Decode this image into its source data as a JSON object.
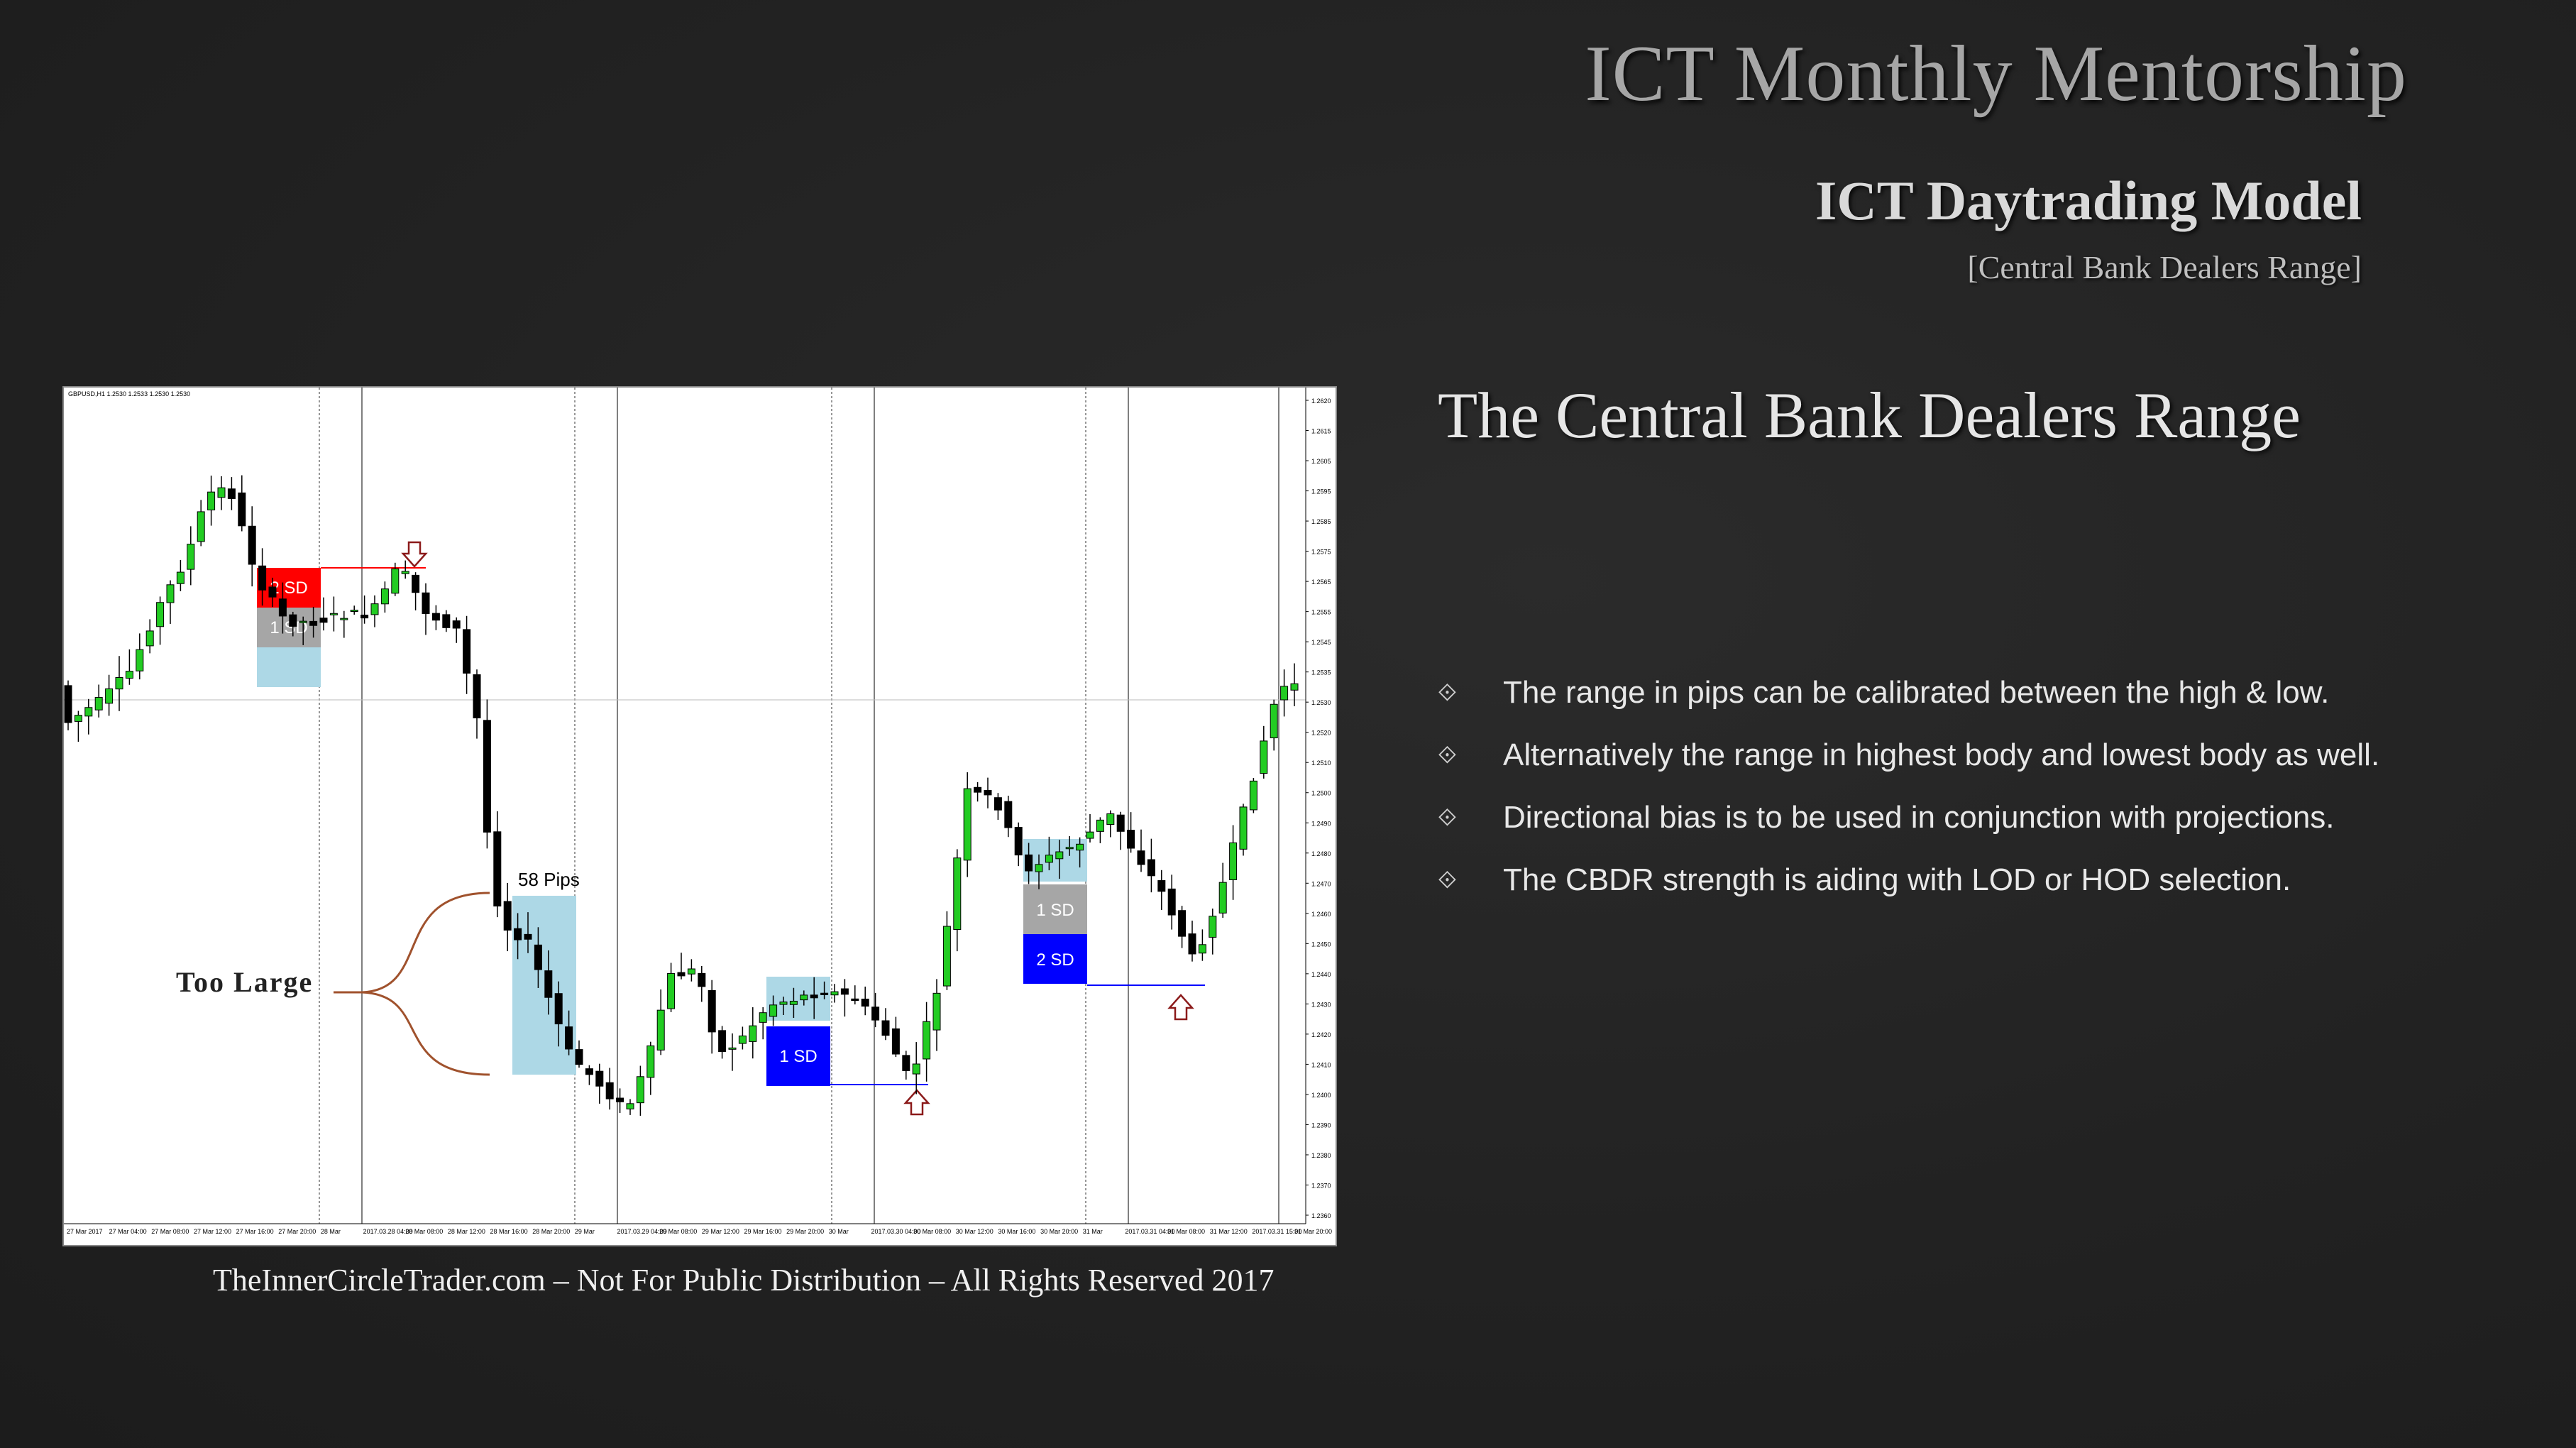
{
  "header": {
    "title": "ICT Monthly Mentorship",
    "subtitle": "ICT Daytrading Model",
    "topic": "[Central Bank Dealers Range]"
  },
  "section": {
    "heading": "The Central Bank Dealers Range",
    "bullets": [
      "The range in pips can be calibrated between the high & low.",
      "Alternatively the range in highest body and lowest body as well.",
      "Directional bias is to be used in conjunction with projections.",
      "The CBDR strength is aiding with LOD or HOD selection."
    ]
  },
  "chart": {
    "symbol_label": "GBPUSD,H1  1.2530 1.2533 1.2530 1.2530",
    "annotations": {
      "sd_labels": [
        "2 SD",
        "1 SD",
        "1 SD",
        "1 SD",
        "2 SD"
      ],
      "pips_label": "58 Pips",
      "too_large_label": "Too Large"
    },
    "price_ticks": [
      "1.2620",
      "1.2615",
      "1.2605",
      "1.2595",
      "1.2585",
      "1.2575",
      "1.2565",
      "1.2555",
      "1.2545",
      "1.2535",
      "1.2530",
      "1.2520",
      "1.2510",
      "1.2500",
      "1.2490",
      "1.2480",
      "1.2470",
      "1.2460",
      "1.2450",
      "1.2440",
      "1.2430",
      "1.2420",
      "1.2410",
      "1.2400",
      "1.2390",
      "1.2380",
      "1.2370",
      "1.2360"
    ],
    "time_ticks": [
      "27 Mar 2017",
      "27 Mar 04:00",
      "27 Mar 08:00",
      "27 Mar 12:00",
      "27 Mar 16:00",
      "27 Mar 20:00",
      "28 Mar",
      "2017.03.28 04:00",
      "28 Mar 08:00",
      "28 Mar 12:00",
      "28 Mar 16:00",
      "28 Mar 20:00",
      "29 Mar",
      "2017.03.29 04:00",
      "29 Mar 08:00",
      "29 Mar 12:00",
      "29 Mar 16:00",
      "29 Mar 20:00",
      "30 Mar",
      "2017.03.30 04:00",
      "30 Mar 08:00",
      "30 Mar 12:00",
      "30 Mar 16:00",
      "30 Mar 20:00",
      "31 Mar",
      "2017.03.31 04:00",
      "31 Mar 08:00",
      "31 Mar 12:00",
      "2017.03.31 15:00",
      "31 Mar 20:00"
    ],
    "colors": {
      "bull": "#22cc22",
      "bear": "#000000",
      "range": "#add8e6",
      "sd_red": "#ff0000",
      "sd_gray": "#a6a6a6",
      "sd_blue": "#0000ff",
      "brace": "#a0522d"
    }
  },
  "footer": "TheInnerCircleTrader.com – Not For Public Distribution – All Rights Reserved 2017"
}
